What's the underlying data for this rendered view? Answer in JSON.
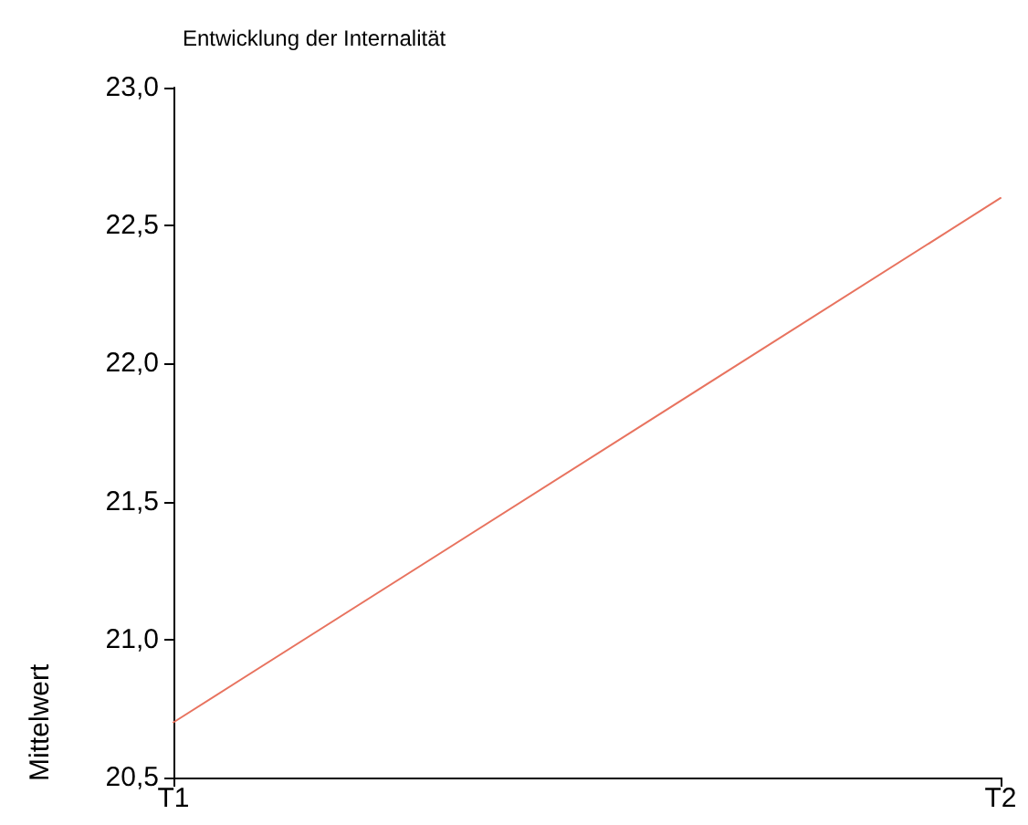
{
  "chart_data": {
    "type": "line",
    "title": "Entwicklung der Internalität",
    "ylabel": "Mittelwert",
    "categories": [
      "T1",
      "T2"
    ],
    "series": [
      {
        "color": "#e8735f",
        "values": [
          20.7,
          22.6
        ]
      }
    ],
    "ylim": [
      20.5,
      23.0
    ],
    "yticks": [
      {
        "value": 20.5,
        "label": "20,5"
      },
      {
        "value": 21.0,
        "label": "21,0"
      },
      {
        "value": 21.5,
        "label": "21,5"
      },
      {
        "value": 22.0,
        "label": "22,0"
      },
      {
        "value": 22.5,
        "label": "22,5"
      },
      {
        "value": 23.0,
        "label": "23,0"
      }
    ],
    "grid": false,
    "marker": "none",
    "line_style": "solid"
  }
}
